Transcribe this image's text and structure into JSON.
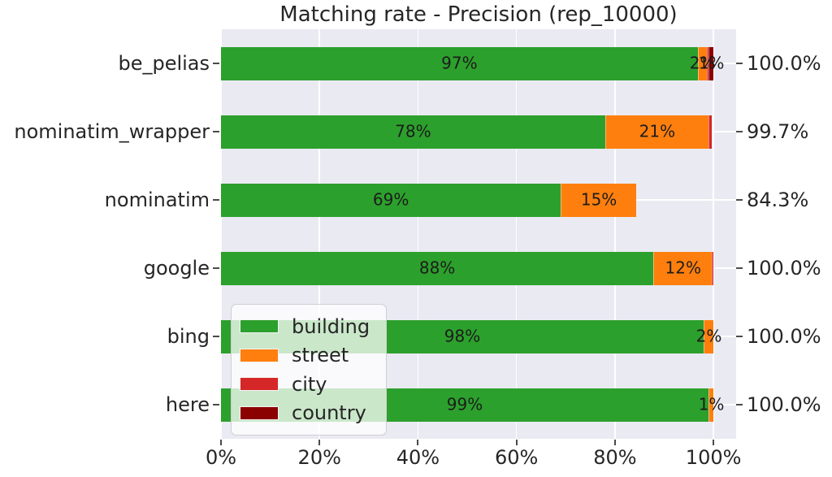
{
  "title": "Matching rate - Precision (rep_10000)",
  "theme": {
    "plot_background": "#eaeaf2",
    "grid_color": "#ffffff",
    "text_color": "#262626",
    "bar_label_color": "#1c1c1c"
  },
  "chart_data": {
    "type": "bar",
    "orientation": "horizontal",
    "stacked": true,
    "grid": true,
    "title": "Matching rate - Precision (rep_10000)",
    "xlabel": "",
    "ylabel": "",
    "xlim": [
      0,
      104.6
    ],
    "categories": [
      "be_pelias",
      "nominatim_wrapper",
      "nominatim",
      "google",
      "bing",
      "here"
    ],
    "series": [
      {
        "name": "building",
        "color": "#2ca02c",
        "values": [
          96.8,
          78,
          69,
          87.8,
          98,
          99
        ],
        "labels": [
          "97%",
          "78%",
          "69%",
          "88%",
          "98%",
          "99%"
        ]
      },
      {
        "name": "street",
        "color": "#ff7f0e",
        "values": [
          1.8,
          21,
          15.3,
          11.9,
          2,
          1
        ],
        "labels": [
          "2%",
          "21%",
          "15%",
          "12%",
          "2%",
          "1%"
        ]
      },
      {
        "name": "city",
        "color": "#d62728",
        "values": [
          0.4,
          0.7,
          0,
          0.3,
          0,
          0
        ],
        "labels": [
          "",
          "",
          "",
          "",
          "",
          ""
        ]
      },
      {
        "name": "country",
        "color": "#8b0000",
        "values": [
          1.0,
          0,
          0,
          0,
          0,
          0
        ],
        "labels": [
          "1%",
          "",
          "",
          "",
          "",
          ""
        ]
      }
    ],
    "row_totals": [
      "100.0%",
      "99.7%",
      "84.3%",
      "100.0%",
      "100.0%",
      "100.0%"
    ],
    "x_ticks": [
      {
        "value": 0,
        "label": "0%"
      },
      {
        "value": 20,
        "label": "20%"
      },
      {
        "value": 40,
        "label": "40%"
      },
      {
        "value": 60,
        "label": "60%"
      },
      {
        "value": 80,
        "label": "80%"
      },
      {
        "value": 100,
        "label": "100%"
      }
    ],
    "legend": {
      "position": "lower left",
      "entries": [
        "building",
        "street",
        "city",
        "country"
      ]
    }
  }
}
